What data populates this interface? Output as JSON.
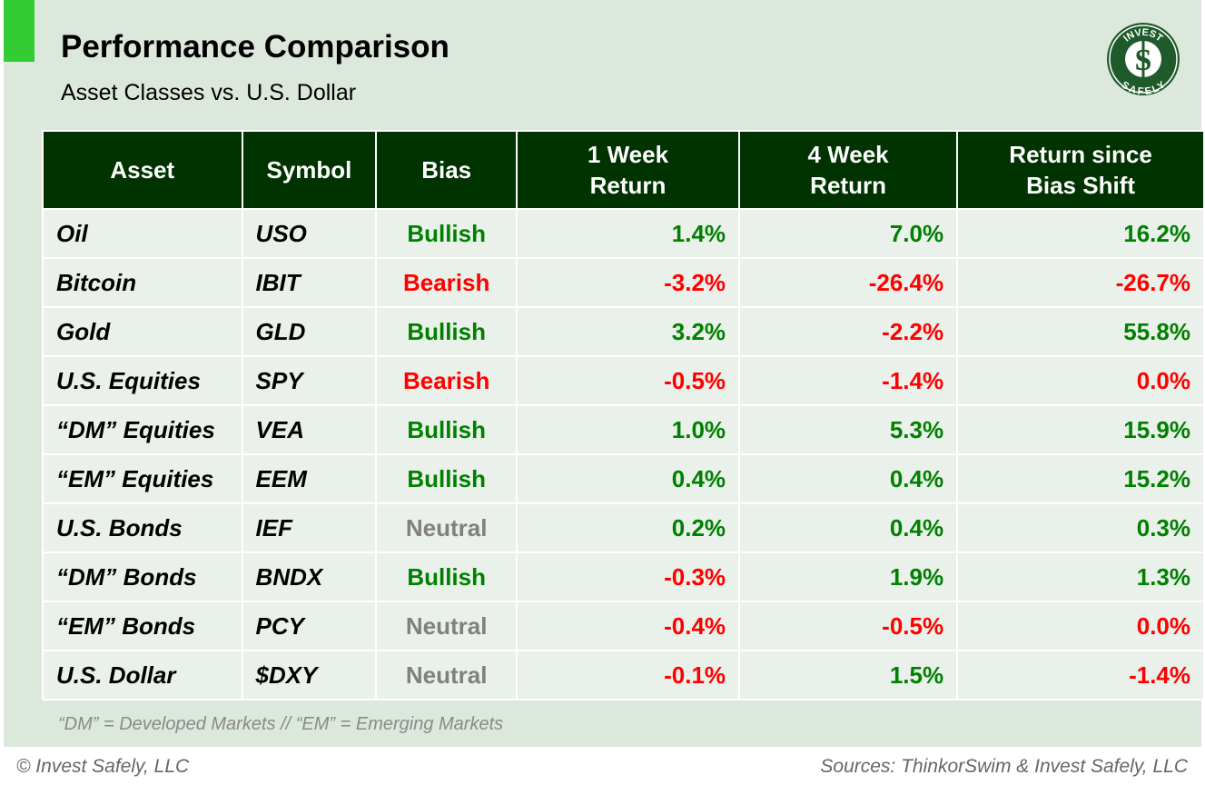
{
  "header": {
    "title": "Performance Comparison",
    "subtitle": "Asset Classes vs. U.S. Dollar",
    "logo_text": "INVEST SAFELY"
  },
  "colors": {
    "positive": "#008000",
    "negative": "#ff0000",
    "neutral": "#808080",
    "header_bg": "#003300",
    "accent": "#33cc33"
  },
  "chart_data": {
    "type": "table",
    "columns": [
      "Asset",
      "Symbol",
      "Bias",
      "1 Week Return",
      "4 Week Return",
      "Return since Bias Shift"
    ],
    "rows": [
      [
        "Oil",
        "USO",
        "Bullish",
        "1.4%",
        "7.0%",
        "16.2%"
      ],
      [
        "Bitcoin",
        "IBIT",
        "Bearish",
        "-3.2%",
        "-26.4%",
        "-26.7%"
      ],
      [
        "Gold",
        "GLD",
        "Bullish",
        "3.2%",
        "-2.2%",
        "55.8%"
      ],
      [
        "U.S. Equities",
        "SPY",
        "Bearish",
        "-0.5%",
        "-1.4%",
        "0.0%"
      ],
      [
        "“DM” Equities",
        "VEA",
        "Bullish",
        "1.0%",
        "5.3%",
        "15.9%"
      ],
      [
        "“EM” Equities",
        "EEM",
        "Bullish",
        "0.4%",
        "0.4%",
        "15.2%"
      ],
      [
        "U.S. Bonds",
        "IEF",
        "Neutral",
        "0.2%",
        "0.4%",
        "0.3%"
      ],
      [
        "“DM” Bonds",
        "BNDX",
        "Bullish",
        "-0.3%",
        "1.9%",
        "1.3%"
      ],
      [
        "“EM” Bonds",
        "PCY",
        "Neutral",
        "-0.4%",
        "-0.5%",
        "0.0%"
      ],
      [
        "U.S. Dollar",
        "$DXY",
        "Neutral",
        "-0.1%",
        "1.5%",
        "-1.4%"
      ]
    ],
    "zero_color": "negative"
  },
  "footnote": "“DM” = Developed Markets // “EM” = Emerging Markets",
  "footer": {
    "copyright": "© Invest Safely, LLC",
    "sources": "Sources: ThinkorSwim & Invest Safely, LLC"
  }
}
